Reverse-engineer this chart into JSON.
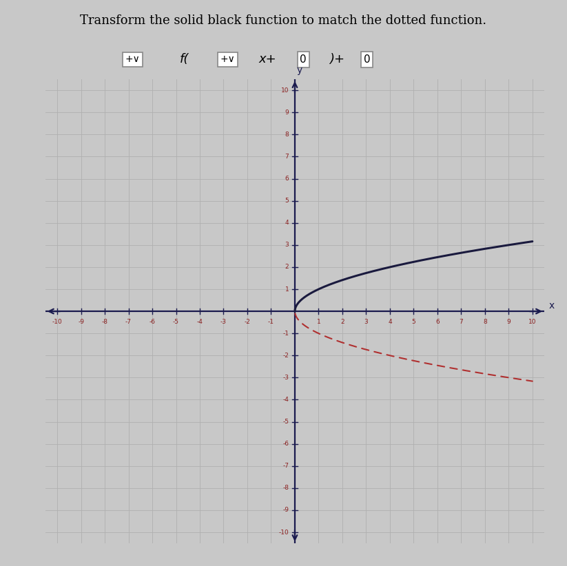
{
  "title": "Transform the solid black function to match the dotted function.",
  "title_fontsize": 13,
  "xlim": [
    -10.5,
    10.5
  ],
  "ylim": [
    -10.5,
    10.5
  ],
  "xticks": [
    -10,
    -9,
    -8,
    -7,
    -6,
    -5,
    -4,
    -3,
    -2,
    -1,
    1,
    2,
    3,
    4,
    5,
    6,
    7,
    8,
    9,
    10
  ],
  "yticks": [
    -10,
    -9,
    -8,
    -7,
    -6,
    -5,
    -4,
    -3,
    -2,
    -1,
    1,
    2,
    3,
    4,
    5,
    6,
    7,
    8,
    9,
    10
  ],
  "background_color": "#c8c8c8",
  "grid_color": "#b0b0b0",
  "axis_color": "#1a1a4e",
  "tick_label_color": "#8b2020",
  "solid_line_color": "#1a1a3e",
  "dotted_line_color": "#b03030",
  "solid_linewidth": 2.2,
  "dotted_linewidth": 1.5,
  "formula_box_color": "#ffffff",
  "formula_edge_color": "#888888"
}
